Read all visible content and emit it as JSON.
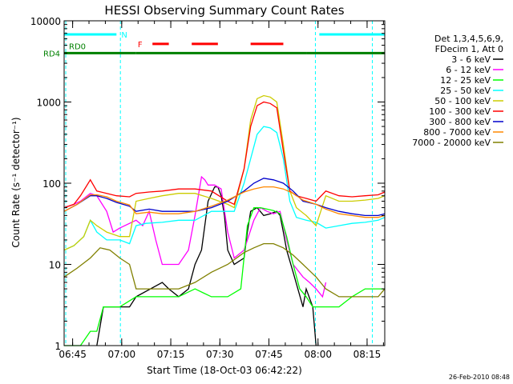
{
  "chart_data": {
    "type": "line",
    "title": "HESSI Observing Summary Count Rates",
    "xlabel": "Start Time (18-Oct-03 06:42:22)",
    "ylabel": "Count Rate (s⁻¹ detector⁻¹)",
    "footer": "26-Feb-2010 08:48",
    "y_scale": "log",
    "ylim": [
      1,
      10000
    ],
    "xlim_minutes": [
      0,
      98
    ],
    "x_ticks": [
      {
        "label": "06:45",
        "t": 2.6
      },
      {
        "label": "07:00",
        "t": 17.6
      },
      {
        "label": "07:15",
        "t": 32.6
      },
      {
        "label": "07:30",
        "t": 47.6
      },
      {
        "label": "07:45",
        "t": 62.6
      },
      {
        "label": "08:00",
        "t": 77.6
      },
      {
        "label": "08:15",
        "t": 92.6
      }
    ],
    "y_ticks": [
      {
        "label": "1",
        "v": 1
      },
      {
        "label": "10",
        "v": 10
      },
      {
        "label": "100",
        "v": 100
      },
      {
        "label": "1000",
        "v": 1000
      },
      {
        "label": "10000",
        "v": 10000
      }
    ],
    "legend_header": [
      "Det 1,3,4,5,6,9,",
      "FDecim 1, Att 0"
    ],
    "legend_placement": "right",
    "series": [
      {
        "name": "3 - 6 keV",
        "color": "#000000",
        "points": [
          [
            10,
            1
          ],
          [
            12,
            3
          ],
          [
            17,
            3
          ],
          [
            20,
            3
          ],
          [
            22,
            4
          ],
          [
            30,
            6
          ],
          [
            32,
            5
          ],
          [
            35,
            4
          ],
          [
            38,
            5
          ],
          [
            40,
            10
          ],
          [
            42,
            15
          ],
          [
            44,
            60
          ],
          [
            46,
            90
          ],
          [
            47,
            90
          ],
          [
            48,
            70
          ],
          [
            49,
            40
          ],
          [
            50,
            15
          ],
          [
            52,
            10
          ],
          [
            55,
            12
          ],
          [
            56,
            25
          ],
          [
            57,
            45
          ],
          [
            59,
            50
          ],
          [
            61,
            40
          ],
          [
            63,
            42
          ],
          [
            65,
            45
          ],
          [
            66,
            40
          ],
          [
            67,
            25
          ],
          [
            68,
            15
          ],
          [
            70,
            8
          ],
          [
            73,
            3
          ],
          [
            74,
            5
          ],
          [
            76,
            3
          ],
          [
            77,
            1
          ]
        ]
      },
      {
        "name": "6 - 12 keV",
        "color": "#ff00ff",
        "points": [
          [
            0,
            50
          ],
          [
            3,
            55
          ],
          [
            5,
            60
          ],
          [
            8,
            75
          ],
          [
            10,
            70
          ],
          [
            13,
            45
          ],
          [
            15,
            25
          ],
          [
            17,
            28
          ],
          [
            22,
            35
          ],
          [
            24,
            30
          ],
          [
            26,
            45
          ],
          [
            28,
            20
          ],
          [
            30,
            10
          ],
          [
            33,
            10
          ],
          [
            35,
            10
          ],
          [
            38,
            15
          ],
          [
            40,
            40
          ],
          [
            42,
            120
          ],
          [
            43,
            110
          ],
          [
            44,
            95
          ],
          [
            46,
            95
          ],
          [
            48,
            85
          ],
          [
            50,
            25
          ],
          [
            52,
            12
          ],
          [
            55,
            15
          ],
          [
            58,
            35
          ],
          [
            60,
            50
          ],
          [
            62,
            45
          ],
          [
            64,
            42
          ],
          [
            66,
            45
          ],
          [
            68,
            20
          ],
          [
            70,
            10
          ],
          [
            73,
            7
          ],
          [
            75,
            6
          ],
          [
            77,
            5
          ],
          [
            79,
            4
          ],
          [
            80,
            6
          ]
        ]
      },
      {
        "name": "12 - 25 keV",
        "color": "#00ff00",
        "points": [
          [
            0,
            1
          ],
          [
            5,
            1
          ],
          [
            8,
            1.5
          ],
          [
            10,
            1.5
          ],
          [
            12,
            3
          ],
          [
            17,
            3
          ],
          [
            22,
            4
          ],
          [
            30,
            4
          ],
          [
            35,
            4
          ],
          [
            40,
            5
          ],
          [
            45,
            4
          ],
          [
            50,
            4
          ],
          [
            54,
            5
          ],
          [
            56,
            30
          ],
          [
            58,
            50
          ],
          [
            60,
            50
          ],
          [
            62,
            48
          ],
          [
            64,
            46
          ],
          [
            66,
            42
          ],
          [
            68,
            22
          ],
          [
            70,
            10
          ],
          [
            72,
            5
          ],
          [
            74,
            4
          ],
          [
            76,
            3
          ],
          [
            78,
            3
          ],
          [
            84,
            3
          ],
          [
            88,
            4
          ],
          [
            92,
            5
          ],
          [
            98,
            5
          ]
        ]
      },
      {
        "name": "25 - 50 keV",
        "color": "#00ffff",
        "points": [
          [
            0,
            15
          ],
          [
            3,
            17
          ],
          [
            6,
            22
          ],
          [
            8,
            35
          ],
          [
            10,
            25
          ],
          [
            13,
            20
          ],
          [
            17,
            20
          ],
          [
            20,
            18
          ],
          [
            22,
            30
          ],
          [
            25,
            32
          ],
          [
            30,
            33
          ],
          [
            35,
            35
          ],
          [
            40,
            35
          ],
          [
            45,
            45
          ],
          [
            50,
            45
          ],
          [
            52,
            45
          ],
          [
            55,
            100
          ],
          [
            57,
            200
          ],
          [
            59,
            400
          ],
          [
            61,
            500
          ],
          [
            63,
            480
          ],
          [
            65,
            420
          ],
          [
            67,
            200
          ],
          [
            69,
            60
          ],
          [
            71,
            38
          ],
          [
            74,
            35
          ],
          [
            77,
            33
          ],
          [
            80,
            28
          ],
          [
            84,
            30
          ],
          [
            88,
            32
          ],
          [
            92,
            33
          ],
          [
            96,
            35
          ],
          [
            98,
            38
          ]
        ]
      },
      {
        "name": "50 - 100 keV",
        "color": "#cccc00",
        "points": [
          [
            0,
            15
          ],
          [
            3,
            17
          ],
          [
            6,
            22
          ],
          [
            8,
            35
          ],
          [
            10,
            30
          ],
          [
            13,
            25
          ],
          [
            17,
            22
          ],
          [
            20,
            22
          ],
          [
            22,
            60
          ],
          [
            26,
            65
          ],
          [
            30,
            70
          ],
          [
            35,
            75
          ],
          [
            40,
            75
          ],
          [
            45,
            65
          ],
          [
            50,
            55
          ],
          [
            52,
            50
          ],
          [
            55,
            150
          ],
          [
            57,
            600
          ],
          [
            59,
            1100
          ],
          [
            61,
            1200
          ],
          [
            63,
            1150
          ],
          [
            65,
            1000
          ],
          [
            67,
            300
          ],
          [
            69,
            80
          ],
          [
            71,
            50
          ],
          [
            74,
            40
          ],
          [
            77,
            30
          ],
          [
            80,
            70
          ],
          [
            84,
            60
          ],
          [
            88,
            60
          ],
          [
            92,
            62
          ],
          [
            96,
            65
          ],
          [
            98,
            70
          ]
        ]
      },
      {
        "name": "100 - 300 keV",
        "color": "#ff0000",
        "points": [
          [
            0,
            50
          ],
          [
            3,
            55
          ],
          [
            5,
            70
          ],
          [
            8,
            110
          ],
          [
            10,
            80
          ],
          [
            13,
            75
          ],
          [
            16,
            70
          ],
          [
            20,
            68
          ],
          [
            22,
            75
          ],
          [
            26,
            78
          ],
          [
            30,
            80
          ],
          [
            35,
            85
          ],
          [
            40,
            85
          ],
          [
            45,
            80
          ],
          [
            50,
            60
          ],
          [
            52,
            55
          ],
          [
            55,
            150
          ],
          [
            57,
            500
          ],
          [
            59,
            900
          ],
          [
            61,
            1000
          ],
          [
            63,
            960
          ],
          [
            65,
            850
          ],
          [
            67,
            250
          ],
          [
            69,
            80
          ],
          [
            71,
            70
          ],
          [
            74,
            65
          ],
          [
            77,
            60
          ],
          [
            80,
            80
          ],
          [
            84,
            70
          ],
          [
            88,
            68
          ],
          [
            92,
            70
          ],
          [
            96,
            72
          ],
          [
            98,
            78
          ]
        ]
      },
      {
        "name": "300 - 800 keV",
        "color": "#0000cc",
        "points": [
          [
            0,
            45
          ],
          [
            4,
            55
          ],
          [
            8,
            70
          ],
          [
            10,
            70
          ],
          [
            13,
            65
          ],
          [
            16,
            58
          ],
          [
            20,
            52
          ],
          [
            22,
            45
          ],
          [
            26,
            48
          ],
          [
            30,
            45
          ],
          [
            35,
            45
          ],
          [
            40,
            45
          ],
          [
            45,
            50
          ],
          [
            50,
            60
          ],
          [
            55,
            80
          ],
          [
            58,
            100
          ],
          [
            61,
            115
          ],
          [
            64,
            110
          ],
          [
            67,
            100
          ],
          [
            70,
            80
          ],
          [
            73,
            60
          ],
          [
            77,
            55
          ],
          [
            80,
            50
          ],
          [
            84,
            45
          ],
          [
            88,
            42
          ],
          [
            92,
            40
          ],
          [
            96,
            40
          ],
          [
            98,
            42
          ]
        ]
      },
      {
        "name": "800 - 7000 keV",
        "color": "#ff8800",
        "points": [
          [
            0,
            45
          ],
          [
            4,
            55
          ],
          [
            8,
            72
          ],
          [
            10,
            72
          ],
          [
            13,
            68
          ],
          [
            16,
            60
          ],
          [
            20,
            54
          ],
          [
            22,
            42
          ],
          [
            26,
            44
          ],
          [
            30,
            42
          ],
          [
            35,
            42
          ],
          [
            40,
            45
          ],
          [
            45,
            52
          ],
          [
            50,
            62
          ],
          [
            55,
            78
          ],
          [
            58,
            85
          ],
          [
            61,
            90
          ],
          [
            64,
            90
          ],
          [
            67,
            85
          ],
          [
            70,
            75
          ],
          [
            73,
            62
          ],
          [
            77,
            55
          ],
          [
            80,
            48
          ],
          [
            84,
            42
          ],
          [
            88,
            40
          ],
          [
            92,
            38
          ],
          [
            96,
            38
          ],
          [
            98,
            40
          ]
        ]
      },
      {
        "name": "7000 - 20000 keV",
        "color": "#808000",
        "points": [
          [
            0,
            7
          ],
          [
            4,
            9
          ],
          [
            8,
            12
          ],
          [
            11,
            16
          ],
          [
            14,
            15
          ],
          [
            17,
            12
          ],
          [
            20,
            10
          ],
          [
            22,
            5
          ],
          [
            26,
            5
          ],
          [
            30,
            5
          ],
          [
            35,
            5
          ],
          [
            40,
            6
          ],
          [
            45,
            8
          ],
          [
            50,
            10
          ],
          [
            55,
            14
          ],
          [
            58,
            16
          ],
          [
            61,
            18
          ],
          [
            64,
            18
          ],
          [
            67,
            16
          ],
          [
            70,
            13
          ],
          [
            73,
            10
          ],
          [
            77,
            7
          ],
          [
            80,
            5
          ],
          [
            84,
            4
          ],
          [
            88,
            4
          ],
          [
            92,
            4
          ],
          [
            96,
            4
          ],
          [
            98,
            5
          ]
        ]
      }
    ],
    "annotations": [
      {
        "label": "N",
        "color": "#00ffff",
        "segments_minutes": [
          [
            0,
            16
          ],
          [
            78,
            98
          ]
        ],
        "y_value": 6800
      },
      {
        "label": "F",
        "color": "#ff0000",
        "segments_minutes": [
          [
            27,
            32
          ],
          [
            39,
            47
          ],
          [
            57,
            67
          ]
        ],
        "y_value": 5200
      },
      {
        "label": "RD0",
        "color": "#008000",
        "segments_minutes": [
          [
            0,
            1
          ]
        ],
        "y_value": 4100
      },
      {
        "label": "RD4",
        "color": "#008000",
        "segments_minutes": [
          [
            0,
            22
          ],
          [
            22,
            49
          ],
          [
            49,
            74
          ],
          [
            74,
            98
          ]
        ],
        "y_value": 4000
      }
    ]
  }
}
